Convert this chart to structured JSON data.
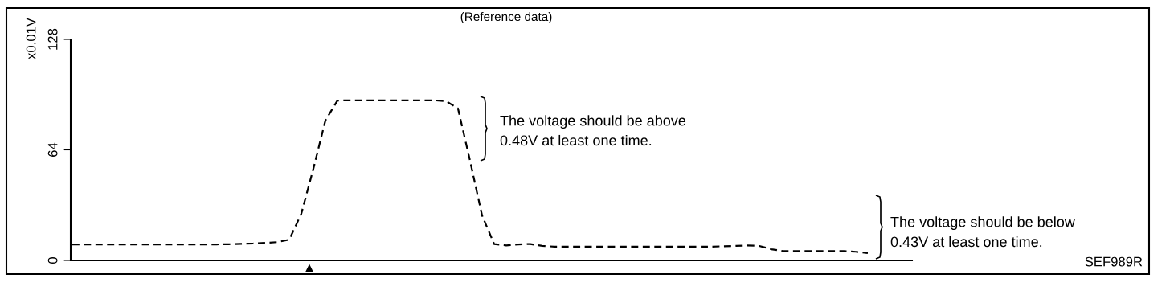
{
  "chart_data": {
    "type": "line",
    "title": "(Reference data)",
    "ylabel": "x0.01V",
    "categories": [
      null,
      null,
      null,
      null,
      null,
      null,
      null,
      null,
      null,
      null,
      null,
      null,
      null,
      null,
      null,
      null,
      null,
      null,
      null,
      null,
      null,
      null,
      null,
      null,
      null,
      null,
      null,
      null,
      null,
      null,
      null,
      null,
      null,
      null,
      null,
      null,
      null,
      null,
      null,
      null,
      null,
      null,
      null,
      null,
      null,
      null,
      null,
      null,
      null,
      null,
      null,
      null,
      null,
      null,
      null,
      null,
      null,
      null,
      null,
      null,
      null,
      null,
      null,
      null,
      null,
      null,
      null,
      null,
      null,
      null
    ],
    "series": [
      {
        "color": "#000000",
        "values": [
          9.3,
          9.3,
          9.3,
          9.3,
          9.3,
          9.3,
          9.3,
          9.3,
          9.3,
          9.3,
          9.3,
          9.3,
          9.3,
          9.4,
          9.6,
          9.8,
          10.2,
          10.6,
          12,
          27,
          53,
          81,
          92.6,
          92.7,
          92.7,
          92.7,
          92.7,
          92.7,
          92.7,
          92.7,
          92.7,
          92.3,
          88,
          57.7,
          26,
          9.5,
          8.7,
          9.3,
          9.5,
          8.4,
          8,
          8,
          8,
          8,
          8,
          8,
          8,
          8,
          8,
          8,
          8,
          8,
          8,
          8,
          8.2,
          8.4,
          8.7,
          8.4,
          6.5,
          5.4,
          5.4,
          5.4,
          5.4,
          5.4,
          5.4,
          5,
          4.2,
          null,
          null,
          null
        ]
      }
    ],
    "ylim": [
      0,
      128
    ],
    "yticks": [
      0,
      64,
      128
    ],
    "tick_labels": "y",
    "line_style": "dashed",
    "marker": "none",
    "annotations": [
      "The voltage should be above\n0.48V at least one time.",
      "The voltage should be below\n0.43V at least one time.",
      "▲",
      "SEF989R"
    ]
  }
}
